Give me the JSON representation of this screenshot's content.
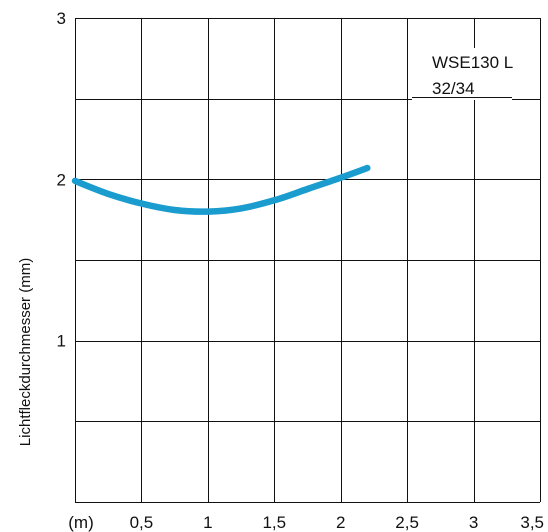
{
  "chart_data": {
    "type": "line",
    "title": "",
    "xlabel": "(m)",
    "ylabel": "Lichtfleckdurchmesser (mm)",
    "xlim": [
      0,
      3.5
    ],
    "ylim": [
      0,
      3
    ],
    "grid": true,
    "x_tick_labels": [
      {
        "value": 0,
        "label": "(m)"
      },
      {
        "value": 0.5,
        "label": "0,5"
      },
      {
        "value": 1,
        "label": "1"
      },
      {
        "value": 1.5,
        "label": "1,5"
      },
      {
        "value": 2,
        "label": "2"
      },
      {
        "value": 2.5,
        "label": "2,5"
      },
      {
        "value": 3,
        "label": "3"
      },
      {
        "value": 3.5,
        "label": "3,5"
      }
    ],
    "y_tick_labels": [
      {
        "value": 1,
        "label": "1"
      },
      {
        "value": 2,
        "label": "2"
      },
      {
        "value": 3,
        "label": "3"
      }
    ],
    "annotation_lines": [
      "WSE130 L",
      "32/34"
    ],
    "series": [
      {
        "color": "#1a9ccf",
        "x": [
          0,
          0.25,
          0.5,
          0.75,
          1.0,
          1.25,
          1.5,
          1.75,
          2.0,
          2.2
        ],
        "y": [
          1.99,
          1.91,
          1.85,
          1.81,
          1.8,
          1.82,
          1.87,
          1.94,
          2.01,
          2.07
        ]
      }
    ]
  }
}
